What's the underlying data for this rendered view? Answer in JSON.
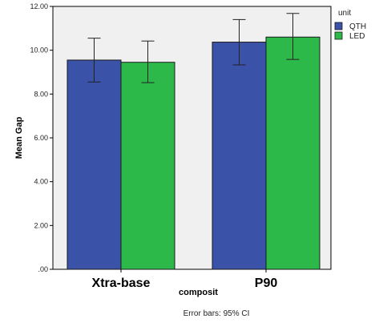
{
  "chart_data": {
    "type": "bar",
    "xlabel": "composit",
    "ylabel": "Mean Gap",
    "categories": [
      "Xtra-base",
      "P90"
    ],
    "legend_title": "unit",
    "legend_position": "top-right",
    "series": [
      {
        "name": "QTH",
        "color": "#3a52a8",
        "values": [
          9.55,
          10.37
        ],
        "ci_low": [
          8.55,
          9.33
        ],
        "ci_high": [
          10.55,
          11.4
        ]
      },
      {
        "name": "LED",
        "color": "#2db84a",
        "values": [
          9.45,
          10.6
        ],
        "ci_low": [
          8.52,
          9.58
        ],
        "ci_high": [
          10.42,
          11.68
        ]
      }
    ],
    "ylim": [
      0,
      12
    ],
    "yticks": [
      ".00",
      "2.00",
      "4.00",
      "6.00",
      "8.00",
      "10.00",
      "12.00"
    ],
    "ytick_values": [
      0,
      2,
      4,
      6,
      8,
      10,
      12
    ],
    "grid": false,
    "plot_background": "#f0f0f0",
    "footnote": "Error bars: 95% CI"
  }
}
